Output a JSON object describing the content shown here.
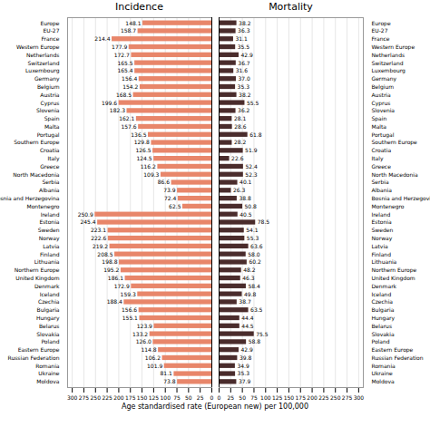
{
  "chart_data": [
    {
      "type": "bar",
      "orientation": "horizontal",
      "title": "Incidence",
      "xlabel": "Age standardised rate (European new) per 100,000",
      "categories": [
        "Europe",
        "EU-27",
        "France",
        "Western Europe",
        "Netherlands",
        "Switzerland",
        "Luxembourg",
        "Germany",
        "Belgium",
        "Austria",
        "Cyprus",
        "Slovenia",
        "Spain",
        "Malta",
        "Portugal",
        "Southern Europe",
        "Croatia",
        "Italy",
        "Greece",
        "North Macedonia",
        "Serbia",
        "Albania",
        "Bosnia and Herzegovina",
        "Montenegro",
        "Ireland",
        "Estonia",
        "Sweden",
        "Norway",
        "Latvia",
        "Finland",
        "Lithuania",
        "Northern Europe",
        "United Kingdom",
        "Denmark",
        "Iceland",
        "Czechia",
        "Bulgaria",
        "Hungary",
        "Belarus",
        "Slovakia",
        "Poland",
        "Eastern Europe",
        "Russian Federation",
        "Romania",
        "Ukraine",
        "Moldova"
      ],
      "values": [
        148.1,
        158.7,
        214.4,
        177.9,
        172.7,
        165.5,
        165.4,
        156.4,
        154.2,
        168.5,
        199.6,
        182.3,
        162.1,
        157.6,
        136.5,
        129.8,
        126.5,
        124.5,
        116.2,
        109.3,
        86.6,
        73.9,
        72.4,
        62.5,
        250.9,
        245.4,
        223.1,
        222.6,
        219.2,
        208.5,
        198.8,
        195.2,
        186.1,
        172.9,
        159.3,
        188.4,
        156.6,
        155.1,
        123.9,
        133.2,
        126.0,
        114.8,
        106.2,
        101.9,
        81.1,
        73.8
      ],
      "value_labels": [
        "148.1",
        "158.7",
        "214.4",
        "177.9",
        "172.7",
        "165.5",
        "165.4",
        "156.4",
        "154.2",
        "168.5",
        "199.6",
        "182.3",
        "162.1",
        "157.6",
        "136.5",
        "129.8",
        "126.5",
        "124.5",
        "116.2",
        "109.3",
        "86.6",
        "73.9",
        "72.4",
        "62.5",
        "250.9",
        "245.4",
        "223.1",
        "222.6",
        "219.2",
        "208.5",
        "198.8",
        "195.2",
        "186.1",
        "172.9",
        "159.3",
        "188.4",
        "156.6",
        "155.1",
        "123.9",
        "133.2",
        "126.0",
        "114.8",
        "106.2",
        "101.9",
        "81.1",
        "73.8"
      ],
      "color": "#E8866A",
      "xlim": [
        0,
        310
      ],
      "xticks": [
        0,
        25,
        50,
        75,
        100,
        125,
        150,
        175,
        200,
        225,
        250,
        275,
        300
      ],
      "grid": true,
      "data_labels": true
    },
    {
      "type": "bar",
      "orientation": "horizontal",
      "title": "Mortality",
      "categories": [
        "Europe",
        "EU-27",
        "France",
        "Western Europe",
        "Netherlands",
        "Switzerland",
        "Luxembourg",
        "Germany",
        "Belgium",
        "Austria",
        "Cyprus",
        "Slovenia",
        "Spain",
        "Malta",
        "Portugal",
        "Southern Europe",
        "Croatia",
        "Italy",
        "Greece",
        "North Macedonia",
        "Serbia",
        "Albania",
        "Bosnia and Herzegovina",
        "Montenegro",
        "Ireland",
        "Estonia",
        "Sweden",
        "Norway",
        "Latvia",
        "Finland",
        "Lithuania",
        "Northern Europe",
        "United Kingdom",
        "Denmark",
        "Iceland",
        "Czechia",
        "Bulgaria",
        "Hungary",
        "Belarus",
        "Slovakia",
        "Poland",
        "Eastern Europe",
        "Russian Federation",
        "Romania",
        "Ukraine",
        "Moldova"
      ],
      "values": [
        38.2,
        36.3,
        31.1,
        35.5,
        42.9,
        36.7,
        31.6,
        37.0,
        35.3,
        38.2,
        55.5,
        36.2,
        28.1,
        28.6,
        61.8,
        28.2,
        51.9,
        22.6,
        52.4,
        52.3,
        40.1,
        26.3,
        38.8,
        50.8,
        40.5,
        78.5,
        54.1,
        55.3,
        63.6,
        58.0,
        60.2,
        48.2,
        46.3,
        58.4,
        49.8,
        38.7,
        63.5,
        44.4,
        44.5,
        75.5,
        58.8,
        42.9,
        39.8,
        34.9,
        35.3,
        37.9
      ],
      "value_labels": [
        "38.2",
        "36.3",
        "31.1",
        "35.5",
        "42.9",
        "36.7",
        "31.6",
        "37.0",
        "35.3",
        "38.2",
        "55.5",
        "36.2",
        "28.1",
        "28.6",
        "61.8",
        "28.2",
        "51.9",
        "22.6",
        "52.4",
        "52.3",
        "40.1",
        "26.3",
        "38.8",
        "50.8",
        "40.5",
        "78.5",
        "54.1",
        "55.3",
        "63.6",
        "58.0",
        "60.2",
        "48.2",
        "46.3",
        "58.4",
        "49.8",
        "38.7",
        "63.5",
        "44.4",
        "44.5",
        "75.5",
        "58.8",
        "42.9",
        "39.8",
        "34.9",
        "35.3",
        "37.9"
      ],
      "color": "#4A2C2C",
      "xlim": [
        0,
        310
      ],
      "xticks": [
        0,
        25,
        50,
        75,
        100,
        125,
        150,
        175,
        200,
        225,
        250,
        275,
        300
      ],
      "grid": true,
      "data_labels": true
    }
  ]
}
